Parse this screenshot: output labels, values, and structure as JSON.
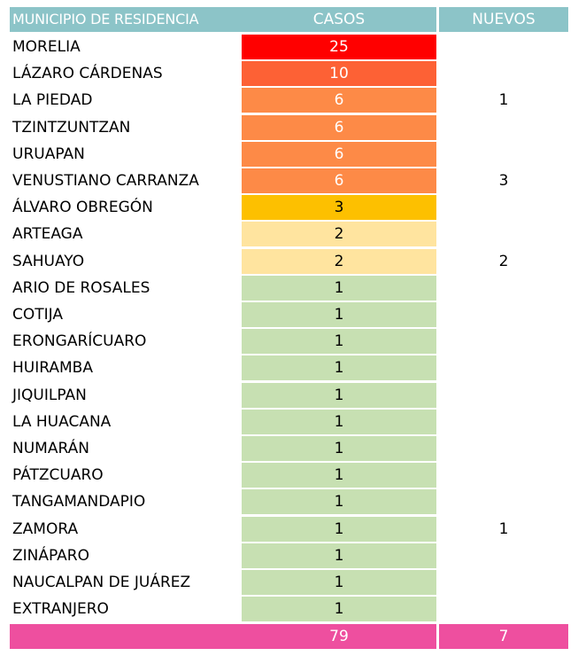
{
  "table": {
    "headers": [
      "MUNICIPIO DE RESIDENCIA",
      "CASOS",
      "NUEVOS"
    ],
    "rows": [
      {
        "municipio": "MORELIA",
        "casos": "25",
        "nuevos": "",
        "color": "#ff0000",
        "text_color": "#ffffff"
      },
      {
        "municipio": "LÁZARO CÁRDENAS",
        "casos": "10",
        "nuevos": "",
        "color": "#fd6135",
        "text_color": "#ffffff"
      },
      {
        "municipio": "LA PIEDAD",
        "casos": "6",
        "nuevos": "1",
        "color": "#fd8a47",
        "text_color": "#ffffff"
      },
      {
        "municipio": "TZINTZUNTZAN",
        "casos": "6",
        "nuevos": "",
        "color": "#fd8a47",
        "text_color": "#ffffff"
      },
      {
        "municipio": "URUAPAN",
        "casos": "6",
        "nuevos": "",
        "color": "#fd8a47",
        "text_color": "#ffffff"
      },
      {
        "municipio": "VENUSTIANO CARRANZA",
        "casos": "6",
        "nuevos": "3",
        "color": "#fd8a47",
        "text_color": "#ffffff"
      },
      {
        "municipio": "ÁLVARO OBREGÓN",
        "casos": "3",
        "nuevos": "",
        "color": "#fdc000",
        "text_color": "#000000"
      },
      {
        "municipio": "ARTEAGA",
        "casos": "2",
        "nuevos": "",
        "color": "#ffe49f",
        "text_color": "#000000"
      },
      {
        "municipio": "SAHUAYO",
        "casos": "2",
        "nuevos": "2",
        "color": "#ffe49f",
        "text_color": "#000000"
      },
      {
        "municipio": "ARIO DE ROSALES",
        "casos": "1",
        "nuevos": "",
        "color": "#c7e0b2",
        "text_color": "#000000"
      },
      {
        "municipio": "COTIJA",
        "casos": "1",
        "nuevos": "",
        "color": "#c7e0b2",
        "text_color": "#000000"
      },
      {
        "municipio": "ERONGARÍCUARO",
        "casos": "1",
        "nuevos": "",
        "color": "#c7e0b2",
        "text_color": "#000000"
      },
      {
        "municipio": "HUIRAMBA",
        "casos": "1",
        "nuevos": "",
        "color": "#c7e0b2",
        "text_color": "#000000"
      },
      {
        "municipio": "JIQUILPAN",
        "casos": "1",
        "nuevos": "",
        "color": "#c7e0b2",
        "text_color": "#000000"
      },
      {
        "municipio": "LA HUACANA",
        "casos": "1",
        "nuevos": "",
        "color": "#c7e0b2",
        "text_color": "#000000"
      },
      {
        "municipio": "NUMARÁN",
        "casos": "1",
        "nuevos": "",
        "color": "#c7e0b2",
        "text_color": "#000000"
      },
      {
        "municipio": "PÁTZCUARO",
        "casos": "1",
        "nuevos": "",
        "color": "#c7e0b2",
        "text_color": "#000000"
      },
      {
        "municipio": "TANGAMANDAPIO",
        "casos": "1",
        "nuevos": "",
        "color": "#c7e0b2",
        "text_color": "#000000"
      },
      {
        "municipio": "ZAMORA",
        "casos": "1",
        "nuevos": "1",
        "color": "#c7e0b2",
        "text_color": "#000000"
      },
      {
        "municipio": "ZINÁPARO",
        "casos": "1",
        "nuevos": "",
        "color": "#c7e0b2",
        "text_color": "#000000"
      },
      {
        "municipio": "NAUCALPAN DE JUÁREZ",
        "casos": "1",
        "nuevos": "",
        "color": "#c7e0b2",
        "text_color": "#000000"
      },
      {
        "municipio": "EXTRANJERO",
        "casos": "1",
        "nuevos": "",
        "color": "#c7e0b2",
        "text_color": "#000000"
      }
    ],
    "total": {
      "municipio": "",
      "casos": "79",
      "nuevos": "7"
    }
  },
  "colors": {
    "header_bg": "#8cc4c8",
    "total_bg": "#ee4f9f"
  },
  "chart_data": {
    "type": "table",
    "columns": [
      "MUNICIPIO DE RESIDENCIA",
      "CASOS",
      "NUEVOS"
    ],
    "rows": [
      [
        "MORELIA",
        25,
        null
      ],
      [
        "LÁZARO CÁRDENAS",
        10,
        null
      ],
      [
        "LA PIEDAD",
        6,
        1
      ],
      [
        "TZINTZUNTZAN",
        6,
        null
      ],
      [
        "URUAPAN",
        6,
        null
      ],
      [
        "VENUSTIANO CARRANZA",
        6,
        3
      ],
      [
        "ÁLVARO OBREGÓN",
        3,
        null
      ],
      [
        "ARTEAGA",
        2,
        null
      ],
      [
        "SAHUAYO",
        2,
        2
      ],
      [
        "ARIO DE ROSALES",
        1,
        null
      ],
      [
        "COTIJA",
        1,
        null
      ],
      [
        "ERONGARÍCUARO",
        1,
        null
      ],
      [
        "HUIRAMBA",
        1,
        null
      ],
      [
        "JIQUILPAN",
        1,
        null
      ],
      [
        "LA HUACANA",
        1,
        null
      ],
      [
        "NUMARÁN",
        1,
        null
      ],
      [
        "PÁTZCUARO",
        1,
        null
      ],
      [
        "TANGAMANDAPIO",
        1,
        null
      ],
      [
        "ZAMORA",
        1,
        1
      ],
      [
        "ZINÁPARO",
        1,
        null
      ],
      [
        "NAUCALPAN DE JUÁREZ",
        1,
        null
      ],
      [
        "EXTRANJERO",
        1,
        null
      ]
    ],
    "totals": {
      "casos": 79,
      "nuevos": 7
    }
  }
}
